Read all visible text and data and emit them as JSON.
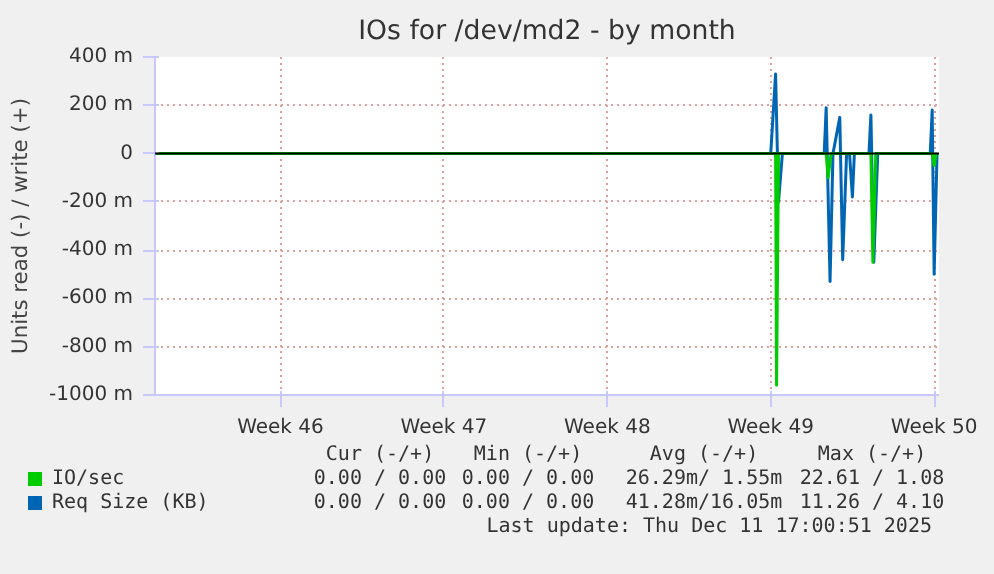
{
  "chart_data": {
    "type": "line",
    "title": "IOs for /dev/md2 - by month",
    "ylabel": "Units read (-) / write (+)",
    "xlim": [
      "2025-11-08T03:00",
      "2025-12-11T17:00"
    ],
    "xticks": [
      {
        "value": "2025-11-13T12:00",
        "label": "Week 46"
      },
      {
        "value": "2025-11-20T12:00",
        "label": "Week 47"
      },
      {
        "value": "2025-11-27T12:00",
        "label": "Week 48"
      },
      {
        "value": "2025-12-04T12:00",
        "label": "Week 49"
      },
      {
        "value": "2025-12-11T12:00",
        "label": "Week 50"
      }
    ],
    "ylim": [
      -1000,
      400
    ],
    "yticks": [
      {
        "value": -1000,
        "label": "-1000 m"
      },
      {
        "value": -800,
        "label": "-800 m"
      },
      {
        "value": -600,
        "label": "-600 m"
      },
      {
        "value": -400,
        "label": "-400 m"
      },
      {
        "value": -200,
        "label": "-200 m"
      },
      0,
      {
        "value": 200,
        "label": "200 m"
      },
      {
        "value": 400,
        "label": "400 m"
      }
    ],
    "grid": true,
    "legend": "bottom",
    "marker": "none",
    "line_style": "solid",
    "ref_lines": [
      {
        "axis": "y",
        "value": 0,
        "label": null,
        "color": "#000000"
      }
    ],
    "series": [
      {
        "name": "Req Size (KB)",
        "color": "#0066b3",
        "x": [
          "2025-11-08T03:00",
          "2025-12-04T12:00",
          "2025-12-04T17:00",
          "2025-12-04T20:00",
          "2025-12-05T00:00",
          "2025-12-06T19:00",
          "2025-12-06T21:00",
          "2025-12-07T01:00",
          "2025-12-07T04:00",
          "2025-12-07T11:00",
          "2025-12-07T14:00",
          "2025-12-07T18:00",
          "2025-12-07T21:00",
          "2025-12-08T00:00",
          "2025-12-08T02:00",
          "2025-12-08T17:00",
          "2025-12-08T19:00",
          "2025-12-08T22:00",
          "2025-12-09T02:00",
          "2025-12-11T08:00",
          "2025-12-11T10:00",
          "2025-12-11T12:00",
          "2025-12-11T15:00"
        ],
        "values": [
          0,
          0,
          330,
          -200,
          0,
          0,
          190,
          -530,
          0,
          150,
          -440,
          0,
          0,
          -180,
          0,
          0,
          160,
          -450,
          0,
          0,
          180,
          -500,
          0
        ]
      },
      {
        "name": "IO/sec",
        "color": "#00cc00",
        "x": [
          "2025-11-08T03:00",
          "2025-12-04T17:00",
          "2025-12-04T18:00",
          "2025-12-04T20:00",
          "2025-12-06T21:00",
          "2025-12-06T23:00",
          "2025-12-07T02:00",
          "2025-12-08T19:00",
          "2025-12-08T21:00",
          "2025-12-09T00:00",
          "2025-12-11T10:00",
          "2025-12-11T12:00",
          "2025-12-11T14:00"
        ],
        "values": [
          0,
          0,
          -960,
          0,
          0,
          -100,
          0,
          0,
          -450,
          0,
          0,
          -50,
          0
        ]
      }
    ],
    "annotations": [
      "Cur (-/+)",
      "Min (-/+)",
      "Avg (-/+)",
      "Max (-/+)",
      "0.00 / 0.00",
      "0.00 / 0.00",
      "26.29m/ 1.55m",
      "22.61 / 1.08",
      "0.00 / 0.00",
      "0.00 / 0.00",
      "41.28m/16.05m",
      "11.26 / 4.10",
      "Last update: Thu Dec 11 17:00:51 2025"
    ]
  }
}
